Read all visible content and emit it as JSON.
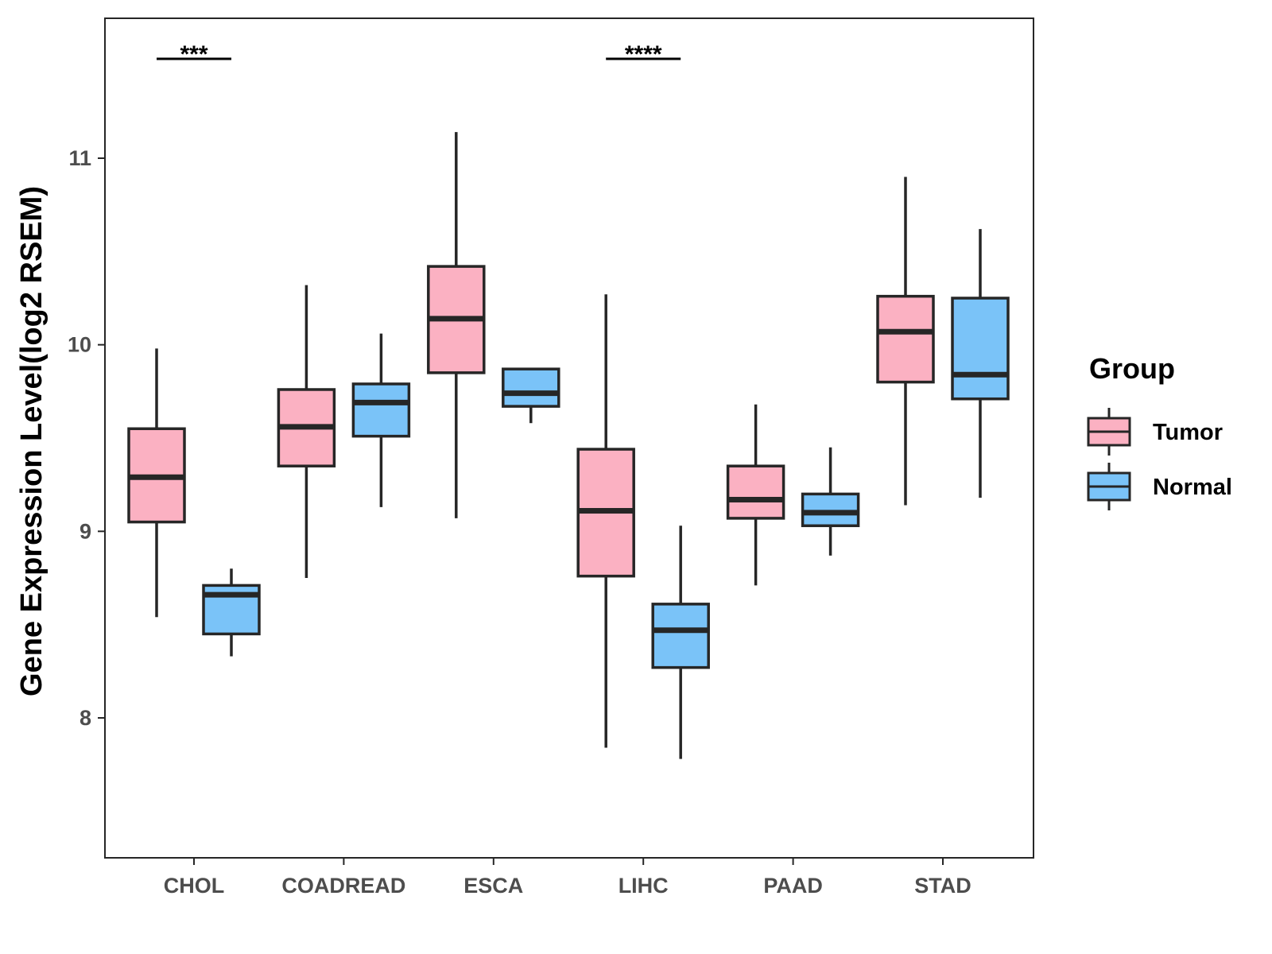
{
  "chart_data": {
    "type": "boxplot",
    "title": "",
    "xlabel": "",
    "ylabel": "Gene Expression Level(log2 RSEM)",
    "ylim": [
      7.25,
      11.75
    ],
    "yticks": [
      8,
      9,
      10,
      11
    ],
    "grid": false,
    "legend": {
      "title": "Group",
      "placement": "right",
      "entries": [
        {
          "name": "Tumor",
          "color": "#fbb1c2"
        },
        {
          "name": "Normal",
          "color": "#7ac3f8"
        }
      ]
    },
    "categories": [
      "CHOL",
      "COADREAD",
      "ESCA",
      "LIHC",
      "PAAD",
      "STAD"
    ],
    "series": [
      {
        "name": "Tumor",
        "color": "#fbb1c2",
        "boxes": [
          {
            "lower_whisker": 8.54,
            "q1": 9.05,
            "median": 9.29,
            "q3": 9.55,
            "upper_whisker": 9.98
          },
          {
            "lower_whisker": 8.75,
            "q1": 9.35,
            "median": 9.56,
            "q3": 9.76,
            "upper_whisker": 10.32
          },
          {
            "lower_whisker": 9.07,
            "q1": 9.85,
            "median": 10.14,
            "q3": 10.42,
            "upper_whisker": 11.14
          },
          {
            "lower_whisker": 7.84,
            "q1": 8.76,
            "median": 9.11,
            "q3": 9.44,
            "upper_whisker": 10.27
          },
          {
            "lower_whisker": 8.71,
            "q1": 9.07,
            "median": 9.17,
            "q3": 9.35,
            "upper_whisker": 9.68
          },
          {
            "lower_whisker": 9.14,
            "q1": 9.8,
            "median": 10.07,
            "q3": 10.26,
            "upper_whisker": 10.9
          }
        ]
      },
      {
        "name": "Normal",
        "color": "#7ac3f8",
        "boxes": [
          {
            "lower_whisker": 8.33,
            "q1": 8.45,
            "median": 8.66,
            "q3": 8.71,
            "upper_whisker": 8.8
          },
          {
            "lower_whisker": 9.13,
            "q1": 9.51,
            "median": 9.69,
            "q3": 9.79,
            "upper_whisker": 10.06
          },
          {
            "lower_whisker": 9.58,
            "q1": 9.67,
            "median": 9.74,
            "q3": 9.87,
            "upper_whisker": 9.87
          },
          {
            "lower_whisker": 7.78,
            "q1": 8.27,
            "median": 8.47,
            "q3": 8.61,
            "upper_whisker": 9.03
          },
          {
            "lower_whisker": 8.87,
            "q1": 9.03,
            "median": 9.1,
            "q3": 9.2,
            "upper_whisker": 9.45
          },
          {
            "lower_whisker": 9.18,
            "q1": 9.71,
            "median": 9.84,
            "q3": 10.25,
            "upper_whisker": 10.62
          }
        ]
      }
    ],
    "annotations": [
      {
        "category": "CHOL",
        "label": "***"
      },
      {
        "category": "LIHC",
        "label": "****"
      }
    ],
    "style": {
      "line_color": "#262626",
      "frame_color": "#262626"
    }
  }
}
